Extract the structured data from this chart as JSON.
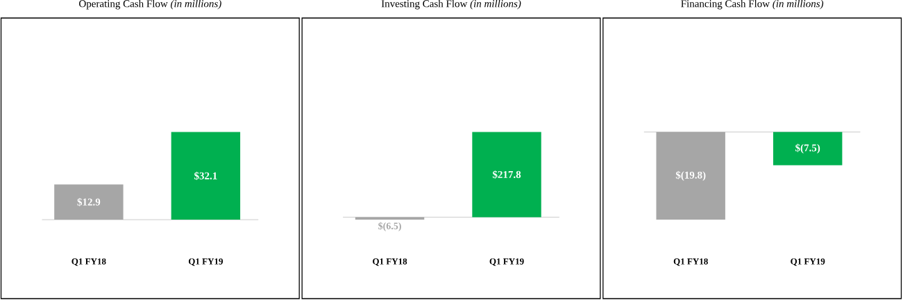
{
  "chart_data": [
    {
      "type": "bar",
      "title": "Operating Cash Flow *(in millions)*",
      "categories": [
        "Q1 FY18",
        "Q1 FY19"
      ],
      "values": [
        12.9,
        32.1
      ],
      "colors": [
        "#a6a6a6",
        "#00b050"
      ],
      "value_labels": [
        "$12.9",
        "$32.1"
      ]
    },
    {
      "type": "bar",
      "title": "Investing Cash Flow *(in millions)*",
      "categories": [
        "Q1 FY18",
        "Q1 FY19"
      ],
      "values": [
        -6.5,
        217.8
      ],
      "colors": [
        "#a6a6a6",
        "#00b050"
      ],
      "value_labels": [
        "$(6.5)",
        "$217.8"
      ]
    },
    {
      "type": "bar",
      "title": "Financing Cash Flow *(in millions)*",
      "categories": [
        "Q1 FY18",
        "Q1 FY19"
      ],
      "values": [
        -19.8,
        -7.5
      ],
      "colors": [
        "#a6a6a6",
        "#00b050"
      ],
      "value_labels": [
        "$(19.8)",
        "$(7.5)"
      ]
    }
  ]
}
